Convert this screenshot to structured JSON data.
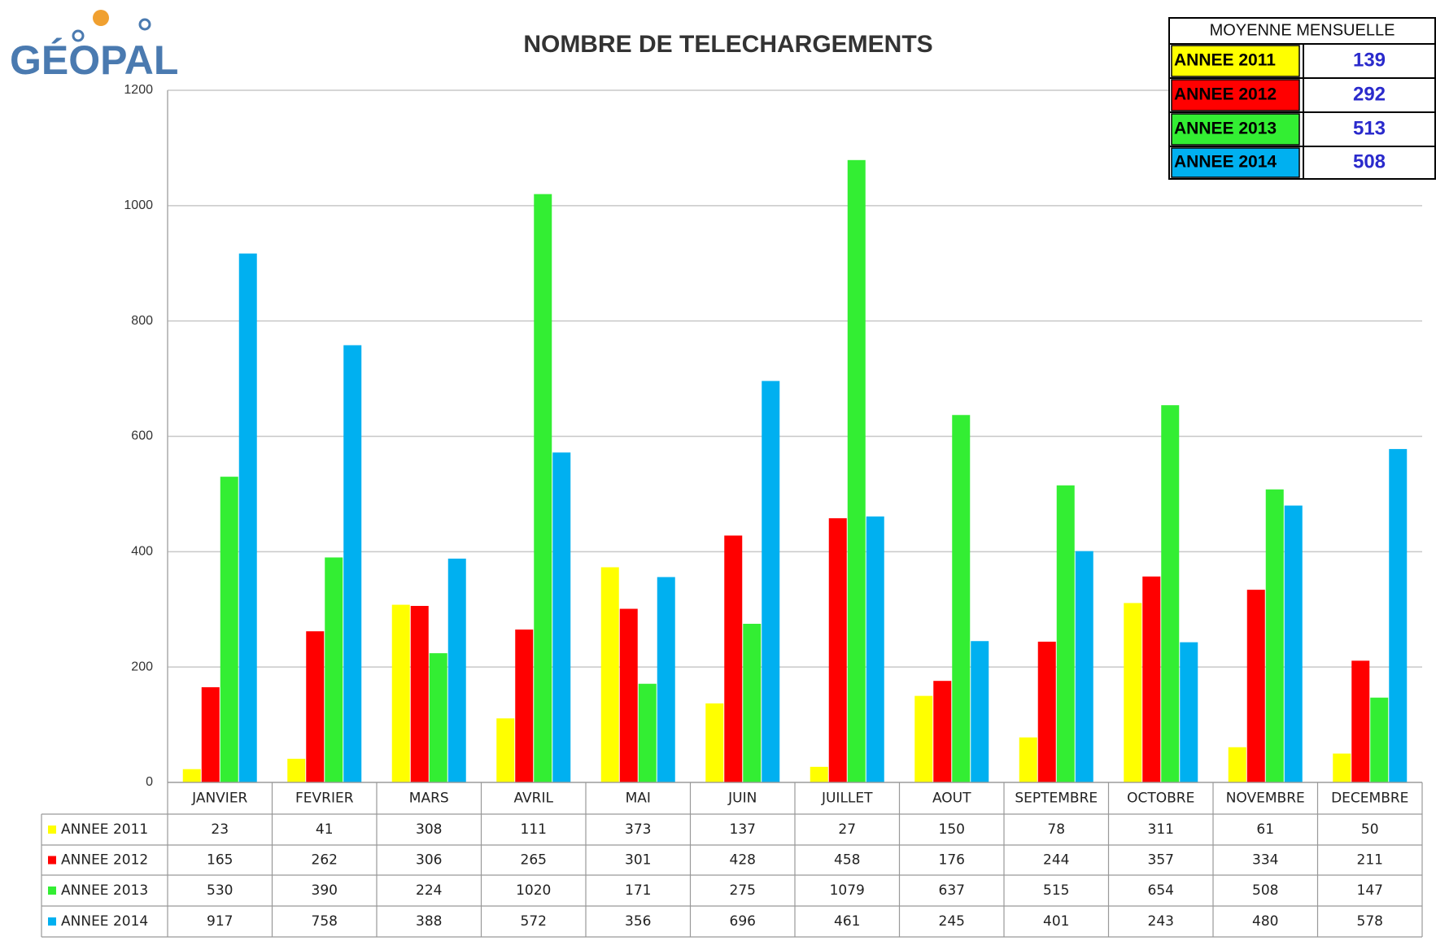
{
  "logo": "GÉOPAL",
  "chart_data": {
    "type": "bar",
    "title": "NOMBRE DE TELECHARGEMENTS",
    "categories": [
      "JANVIER",
      "FEVRIER",
      "MARS",
      "AVRIL",
      "MAI",
      "JUIN",
      "JUILLET",
      "AOUT",
      "SEPTEMBRE",
      "OCTOBRE",
      "NOVEMBRE",
      "DECEMBRE"
    ],
    "series": [
      {
        "name": "ANNEE 2011",
        "color": "#ffff00",
        "values": [
          23,
          41,
          308,
          111,
          373,
          137,
          27,
          150,
          78,
          311,
          61,
          50
        ]
      },
      {
        "name": "ANNEE 2012",
        "color": "#ff0000",
        "values": [
          165,
          262,
          306,
          265,
          301,
          428,
          458,
          176,
          244,
          357,
          334,
          211
        ]
      },
      {
        "name": "ANNEE 2013",
        "color": "#33ee33",
        "values": [
          530,
          390,
          224,
          1020,
          171,
          275,
          1079,
          637,
          515,
          654,
          508,
          147
        ]
      },
      {
        "name": "ANNEE 2014",
        "color": "#00b0f0",
        "values": [
          917,
          758,
          388,
          572,
          356,
          696,
          461,
          245,
          401,
          243,
          480,
          578
        ]
      }
    ],
    "ylim": [
      0,
      1200
    ],
    "yticks": [
      0,
      200,
      400,
      600,
      800,
      1000,
      1200
    ],
    "grid": true
  },
  "monthly_average": {
    "title": "MOYENNE MENSUELLE",
    "values": [
      139,
      292,
      513,
      508
    ]
  }
}
